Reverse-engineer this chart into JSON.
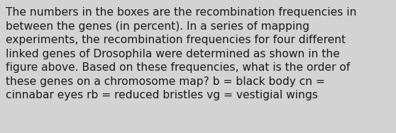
{
  "text_lines": [
    "The numbers in the boxes are the recombination frequencies in",
    "between the genes (in percent). In a series of mapping",
    "experiments, the recombination frequencies for four different",
    "linked genes of Drosophila were determined as shown in the",
    "figure above. Based on these frequencies, what is the order of",
    "these genes on a chromosome map? b = black body cn =",
    "cinnabar eyes rb = reduced bristles vg = vestigial wings"
  ],
  "background_color": "#d3d3d3",
  "text_color": "#1a1a1a",
  "font_size": 11.2,
  "fig_width": 5.58,
  "fig_height": 1.88,
  "dpi": 100
}
